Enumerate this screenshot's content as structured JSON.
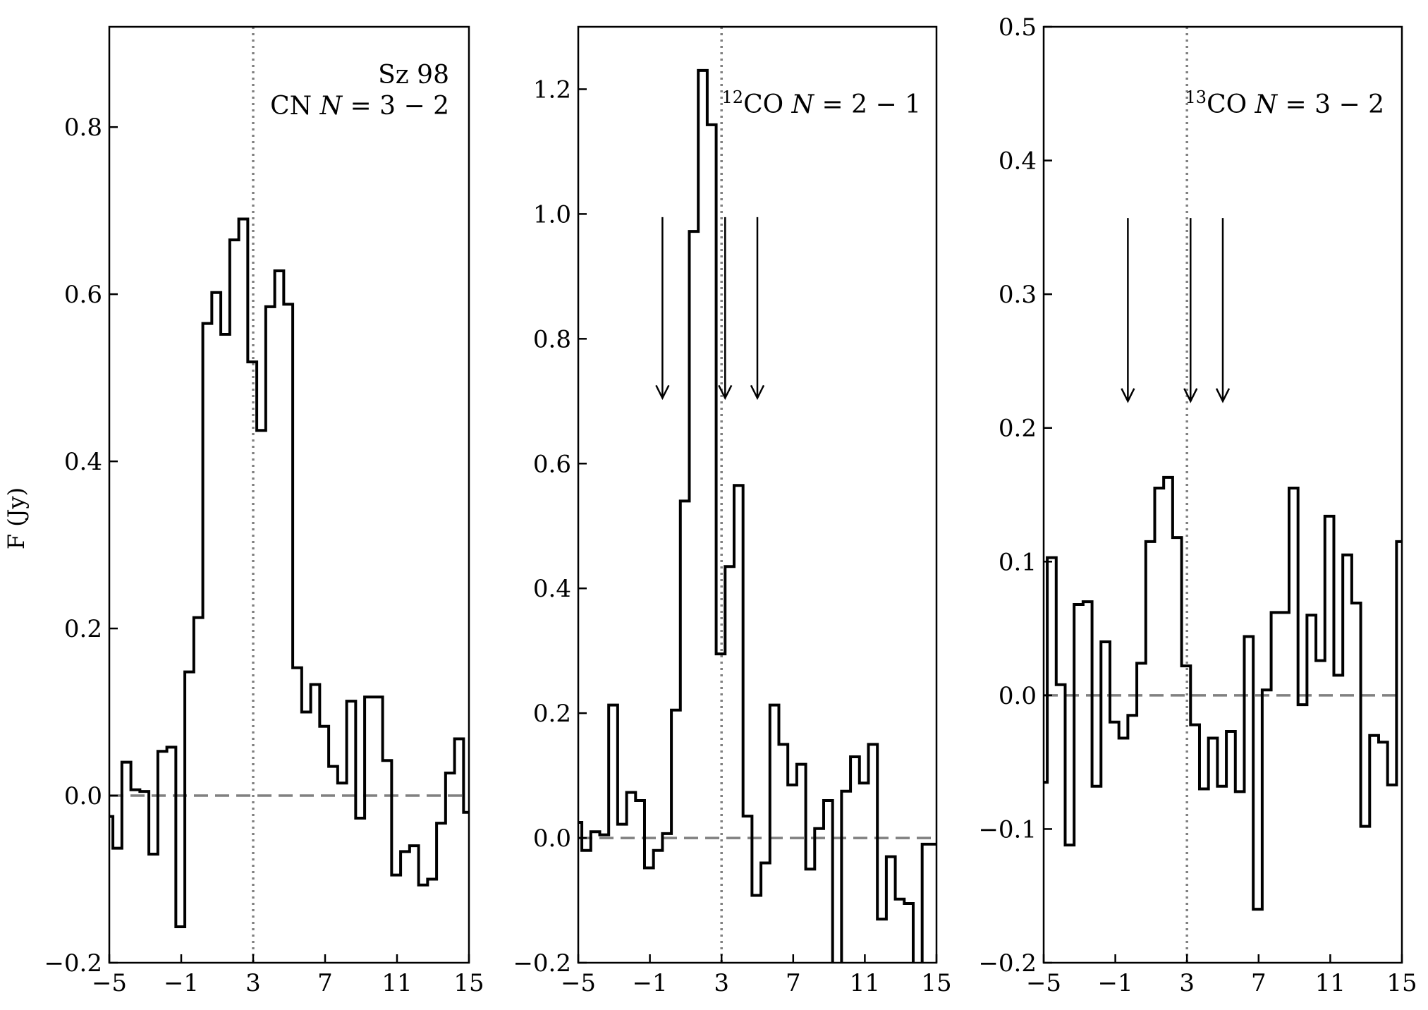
{
  "y_axis_label": "F (Jy)",
  "chart_data": [
    {
      "type": "line",
      "style": "step",
      "title_lines": [
        "Sz 98",
        "CN N = 3 − 2"
      ],
      "label_lines": [
        {
          "text": "Sz 98",
          "sup": "",
          "species": "",
          "qnum": ""
        },
        {
          "text": "",
          "sup": "",
          "species": "CN ",
          "qnum": "3 − 2"
        }
      ],
      "xlabel": "",
      "ylabel": "F (Jy)",
      "xlim": [
        -5,
        15
      ],
      "ylim": [
        -0.2,
        0.92
      ],
      "xticks": [
        -5,
        -1,
        3,
        7,
        11,
        15
      ],
      "yticks": [
        -0.2,
        0.0,
        0.2,
        0.4,
        0.6,
        0.8
      ],
      "ytick_labels": [
        "−0.2",
        "0.0",
        "0.2",
        "0.4",
        "0.6",
        "0.8"
      ],
      "xtick_labels": [
        "−5",
        "−1",
        "3",
        "7",
        "11",
        "15"
      ],
      "vline_x": 3,
      "hline_y": 0,
      "arrows_x": [],
      "arrow_y_range": [],
      "series": [
        {
          "x": [
            -5.2,
            -4.8,
            -4.3,
            -3.8,
            -3.3,
            -2.8,
            -2.3,
            -1.8,
            -1.3,
            -0.8,
            -0.3,
            0.2,
            0.7,
            1.2,
            1.7,
            2.2,
            2.7,
            3.2,
            3.7,
            4.2,
            4.7,
            5.2,
            5.7,
            6.2,
            6.7,
            7.2,
            7.7,
            8.2,
            8.7,
            9.2,
            9.7,
            10.2,
            10.7,
            11.2,
            11.7,
            12.2,
            12.7,
            13.2,
            13.7,
            14.2,
            14.7,
            15.2
          ],
          "y": [
            -0.025,
            -0.063,
            0.04,
            0.007,
            0.005,
            -0.07,
            0.053,
            0.058,
            -0.157,
            0.148,
            0.213,
            0.565,
            0.602,
            0.552,
            0.665,
            0.69,
            0.519,
            0.437,
            0.585,
            0.628,
            0.588,
            0.153,
            0.1,
            0.133,
            0.083,
            0.035,
            0.015,
            0.113,
            -0.027,
            0.118,
            0.118,
            0.042,
            -0.095,
            -0.067,
            -0.06,
            -0.107,
            -0.1,
            -0.033,
            0.027,
            0.068,
            -0.02,
            -0.02
          ]
        }
      ]
    },
    {
      "type": "line",
      "style": "step",
      "title_lines": [
        "12CO N = 2 − 1"
      ],
      "label_lines": [
        {
          "text": "",
          "sup": "12",
          "species": "CO ",
          "qnum": "2 − 1"
        }
      ],
      "xlabel": "",
      "ylabel": "",
      "xlim": [
        -5,
        15
      ],
      "ylim": [
        -0.2,
        1.3
      ],
      "xticks": [
        -5,
        -1,
        3,
        7,
        11,
        15
      ],
      "yticks": [
        -0.2,
        0.0,
        0.2,
        0.4,
        0.6,
        0.8,
        1.0,
        1.2
      ],
      "ytick_labels": [
        "−0.2",
        "0.0",
        "0.2",
        "0.4",
        "0.6",
        "0.8",
        "1.0",
        "1.2"
      ],
      "xtick_labels": [
        "−5",
        "−1",
        "3",
        "7",
        "11",
        "15"
      ],
      "vline_x": 3,
      "hline_y": 0,
      "arrows_x": [
        -0.3,
        3.2,
        5.0
      ],
      "arrow_y_range": [
        0.995,
        0.705
      ],
      "series": [
        {
          "x": [
            -5.2,
            -4.8,
            -4.3,
            -3.8,
            -3.3,
            -2.8,
            -2.3,
            -1.8,
            -1.3,
            -0.8,
            -0.3,
            0.2,
            0.7,
            1.2,
            1.7,
            2.2,
            2.7,
            3.2,
            3.7,
            4.2,
            4.7,
            5.2,
            5.7,
            6.2,
            6.7,
            7.2,
            7.7,
            8.2,
            8.7,
            9.2,
            9.7,
            10.2,
            10.7,
            11.2,
            11.7,
            12.2,
            12.7,
            13.2,
            13.7,
            14.2,
            14.7,
            15.2
          ],
          "y": [
            0.025,
            -0.02,
            0.01,
            0.005,
            0.213,
            0.022,
            0.073,
            0.06,
            -0.048,
            -0.02,
            0.007,
            0.205,
            0.54,
            0.972,
            1.23,
            1.143,
            0.295,
            0.435,
            0.565,
            0.035,
            -0.092,
            -0.04,
            0.213,
            0.15,
            0.085,
            0.118,
            -0.05,
            0.015,
            0.06,
            -0.235,
            0.075,
            0.13,
            0.088,
            0.15,
            -0.13,
            -0.03,
            -0.098,
            -0.105,
            -0.235,
            -0.01,
            -0.01,
            -0.01
          ]
        }
      ]
    },
    {
      "type": "line",
      "style": "step",
      "title_lines": [
        "13CO N = 3 − 2"
      ],
      "label_lines": [
        {
          "text": "",
          "sup": "13",
          "species": "CO ",
          "qnum": "3 − 2"
        }
      ],
      "xlabel": "",
      "ylabel": "",
      "xlim": [
        -5,
        15
      ],
      "ylim": [
        -0.2,
        0.5
      ],
      "xticks": [
        -5,
        -1,
        3,
        7,
        11,
        15
      ],
      "yticks": [
        -0.2,
        -0.1,
        0.0,
        0.1,
        0.2,
        0.3,
        0.4,
        0.5
      ],
      "ytick_labels": [
        "−0.2",
        "−0.1",
        "0.0",
        "0.1",
        "0.2",
        "0.3",
        "0.4",
        "0.5"
      ],
      "xtick_labels": [
        "−5",
        "−1",
        "3",
        "7",
        "11",
        "15"
      ],
      "vline_x": 3,
      "hline_y": 0,
      "arrows_x": [
        -0.3,
        3.2,
        5.0
      ],
      "arrow_y_range": [
        0.357,
        0.22
      ],
      "series": [
        {
          "x": [
            -5.2,
            -4.8,
            -4.3,
            -3.8,
            -3.3,
            -2.8,
            -2.3,
            -1.8,
            -1.3,
            -0.8,
            -0.3,
            0.2,
            0.7,
            1.2,
            1.7,
            2.2,
            2.7,
            3.2,
            3.7,
            4.2,
            4.7,
            5.2,
            5.7,
            6.2,
            6.7,
            7.2,
            7.7,
            8.2,
            8.7,
            9.2,
            9.7,
            10.2,
            10.7,
            11.2,
            11.7,
            12.2,
            12.7,
            13.2,
            13.7,
            14.2,
            14.7,
            15.2
          ],
          "y": [
            -0.065,
            0.103,
            0.008,
            -0.112,
            0.068,
            0.07,
            -0.068,
            0.04,
            -0.02,
            -0.032,
            -0.015,
            0.024,
            0.115,
            0.155,
            0.163,
            0.118,
            0.022,
            -0.022,
            -0.07,
            -0.032,
            -0.068,
            -0.027,
            -0.072,
            0.044,
            -0.16,
            0.004,
            0.062,
            0.062,
            0.155,
            -0.007,
            0.06,
            0.026,
            0.134,
            0.015,
            0.105,
            0.069,
            -0.098,
            -0.03,
            -0.035,
            -0.067,
            0.115,
            0.115
          ]
        }
      ]
    }
  ]
}
